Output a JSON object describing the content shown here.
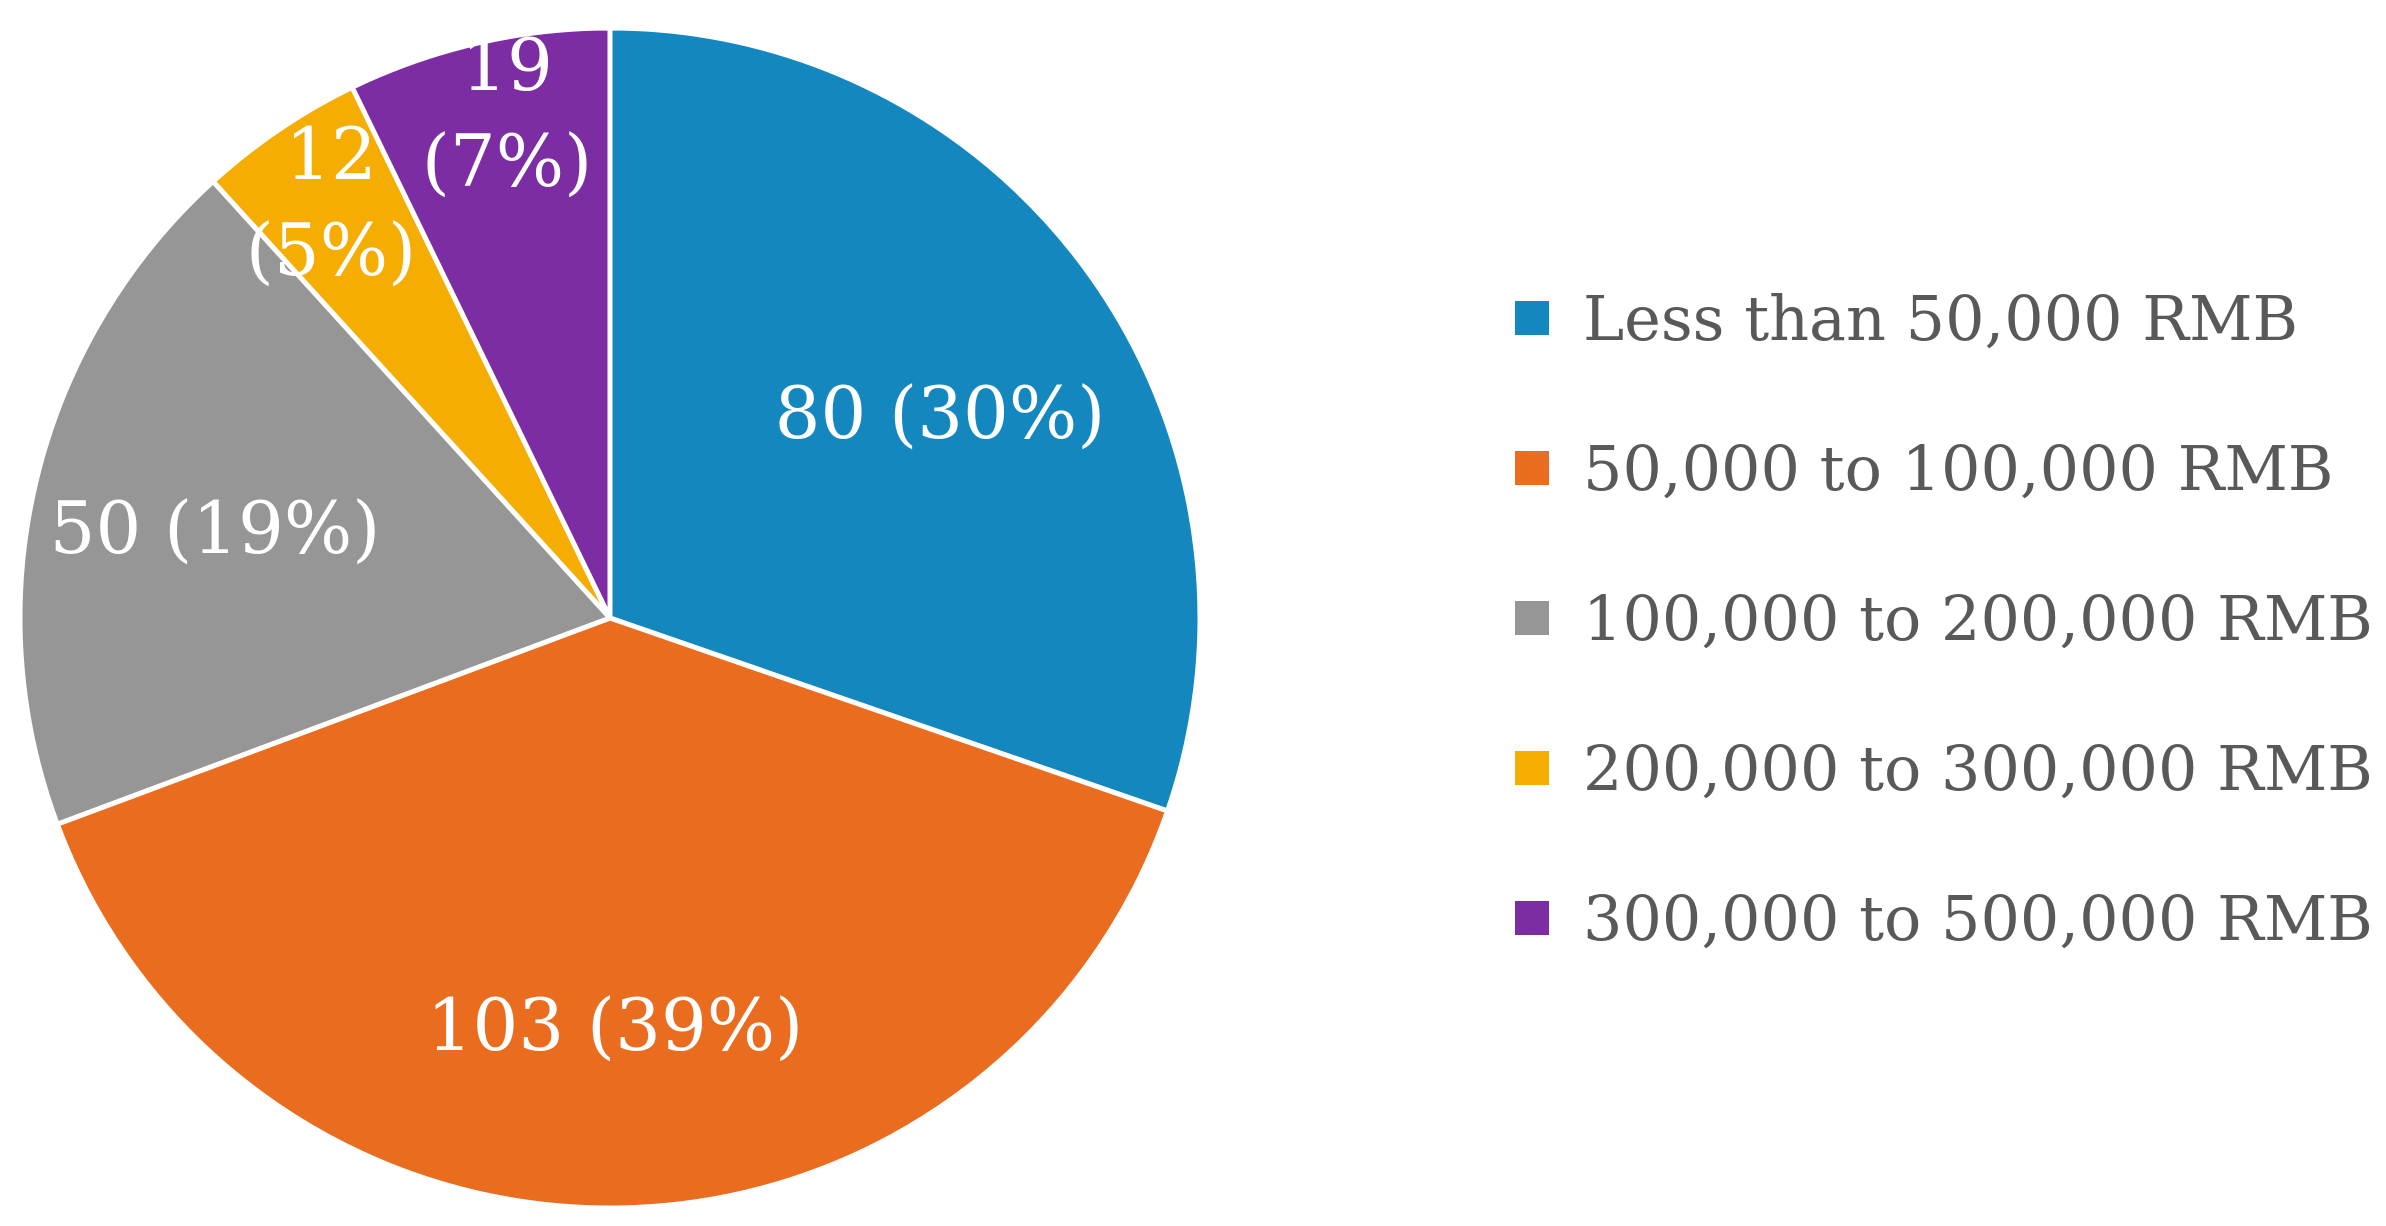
{
  "chart_data": {
    "type": "pie",
    "series": [
      {
        "category": "Less than 50,000 RMB",
        "value": 80,
        "percent": 30,
        "color": "#1487BF",
        "label": "80 (30%)"
      },
      {
        "category": "50,000 to 100,000 RMB",
        "value": 103,
        "percent": 39,
        "color": "#EA6D1F",
        "label": "103 (39%)"
      },
      {
        "category": "100,000 to 200,000 RMB",
        "value": 50,
        "percent": 19,
        "color": "#969696",
        "label": "50 (19%)"
      },
      {
        "category": "200,000 to 300,000 RMB",
        "value": 12,
        "percent": 5,
        "color": "#F4AD00",
        "label": "12 (5%)"
      },
      {
        "category": "300,000 to 500,000 RMB",
        "value": 19,
        "percent": 7,
        "color": "#7D2DA3",
        "label": "19 (7%)"
      }
    ],
    "start_angle": "12 o'clock",
    "direction": "clockwise",
    "legend_position": "right"
  }
}
